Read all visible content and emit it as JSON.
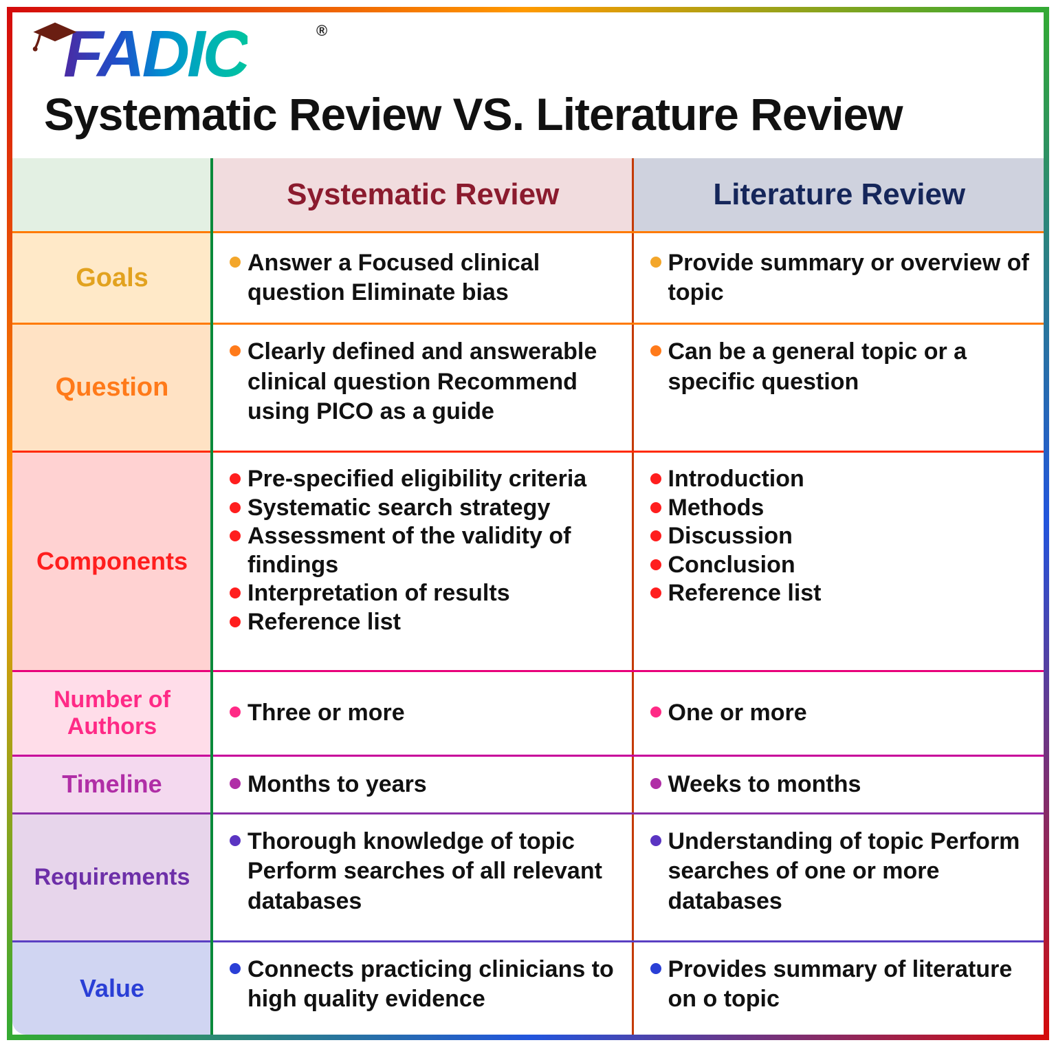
{
  "brand": {
    "name": "FADIC",
    "trademark": "®"
  },
  "title": "Systematic Review VS. Literature Review",
  "columns": {
    "sys_header": {
      "text": "Systematic Review",
      "color": "#8b1b2e"
    },
    "lit_header": {
      "text": "Literature Review",
      "color": "#15265a"
    }
  },
  "rows": {
    "goals": {
      "label": "Goals",
      "label_color": "#e2a21f",
      "bullet_color": "#f3a62a",
      "sys": [
        "Answer a Focused clinical question Eliminate bias"
      ],
      "lit": [
        "Provide summary or overview of topic"
      ]
    },
    "question": {
      "label": "Question",
      "label_color": "#ff7a1a",
      "bullet_color": "#ff7a1a",
      "sys": [
        "Clearly defined and answerable clinical question Recommend using PICO as a guide"
      ],
      "lit": [
        "Can be a general topic or a specific question"
      ]
    },
    "components": {
      "label": "Components",
      "label_color": "#ff1e1e",
      "bullet_color": "#ff1e1e",
      "sys": [
        "Pre-specified eligibility criteria",
        "Systematic search strategy",
        "Assessment of the validity of findings",
        "Interpretation of results",
        "Reference list"
      ],
      "lit": [
        "Introduction",
        "Methods",
        "Discussion",
        "Conclusion",
        "Reference list"
      ]
    },
    "authors": {
      "label": "Number of Authors",
      "label_color": "#ff2a86",
      "bullet_color": "#ff2a86",
      "sys": [
        "Three or more"
      ],
      "lit": [
        "One or more"
      ]
    },
    "timeline": {
      "label": "Timeline",
      "label_color": "#b02ea6",
      "bullet_color": "#b02ea6",
      "sys": [
        "Months to years"
      ],
      "lit": [
        "Weeks to months"
      ]
    },
    "requirements": {
      "label": "Requirements",
      "label_color": "#6d2fa8",
      "bullet_color": "#5a34c2",
      "sys": [
        "Thorough knowledge of topic Perform searches of all relevant databases"
      ],
      "lit": [
        "Understanding of topic Perform searches of one or more databases"
      ]
    },
    "value": {
      "label": "Value",
      "label_color": "#2a3fd6",
      "bullet_color": "#2a3fd6",
      "sys": [
        "Connects practicing clinicians to high quality evidence"
      ],
      "lit": [
        "Provides summary of literature on o topic"
      ]
    }
  },
  "row_order": [
    "goals",
    "question",
    "components",
    "authors",
    "timeline",
    "requirements",
    "value"
  ],
  "row_class": {
    "goals": "r-goals",
    "question": "r-question",
    "components": "r-components",
    "authors": "r-authors",
    "timeline": "r-timeline",
    "requirements": "r-req",
    "value": "r-value"
  },
  "vtop_rows": [
    "question",
    "components",
    "requirements",
    "value"
  ]
}
